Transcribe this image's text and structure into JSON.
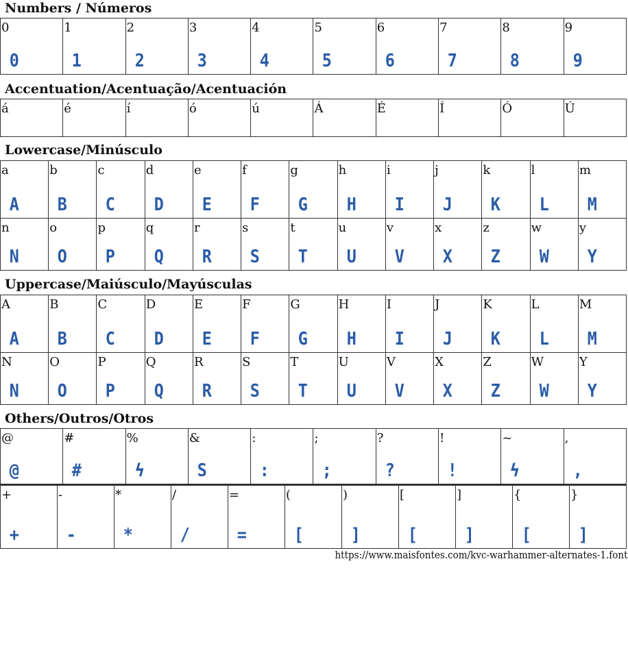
{
  "sections": {
    "numbers": "Numbers / Números",
    "accents": "Accentuation/Acentuação/Acentuación",
    "lowercase": "Lowercase/Minúsculo",
    "uppercase": "Uppercase/Maiúsculo/Mayúsculas",
    "others": "Others/Outros/Otros"
  },
  "glyph_color": "#2a5ca6",
  "rows": {
    "numbers": [
      [
        "0",
        "0"
      ],
      [
        "1",
        "1"
      ],
      [
        "2",
        "2"
      ],
      [
        "3",
        "3"
      ],
      [
        "4",
        "4"
      ],
      [
        "5",
        "5"
      ],
      [
        "6",
        "6"
      ],
      [
        "7",
        "7"
      ],
      [
        "8",
        "8"
      ],
      [
        "9",
        "9"
      ]
    ],
    "accents": [
      [
        "á",
        ""
      ],
      [
        "é",
        ""
      ],
      [
        "í",
        ""
      ],
      [
        "ó",
        ""
      ],
      [
        "ú",
        ""
      ],
      [
        "Á",
        ""
      ],
      [
        "É",
        ""
      ],
      [
        "Í",
        ""
      ],
      [
        "Ó",
        ""
      ],
      [
        "Ú",
        ""
      ]
    ],
    "lower1": [
      [
        "a",
        "A"
      ],
      [
        "b",
        "B"
      ],
      [
        "c",
        "C"
      ],
      [
        "d",
        "D"
      ],
      [
        "e",
        "E"
      ],
      [
        "f",
        "F"
      ],
      [
        "g",
        "G"
      ],
      [
        "h",
        "H"
      ],
      [
        "i",
        "I"
      ],
      [
        "j",
        "J"
      ],
      [
        "k",
        "K"
      ],
      [
        "l",
        "L"
      ],
      [
        "m",
        "M"
      ]
    ],
    "lower2": [
      [
        "n",
        "N"
      ],
      [
        "o",
        "O"
      ],
      [
        "p",
        "P"
      ],
      [
        "q",
        "Q"
      ],
      [
        "r",
        "R"
      ],
      [
        "s",
        "S"
      ],
      [
        "t",
        "T"
      ],
      [
        "u",
        "U"
      ],
      [
        "v",
        "V"
      ],
      [
        "x",
        "X"
      ],
      [
        "z",
        "Z"
      ],
      [
        "w",
        "W"
      ],
      [
        "y",
        "Y"
      ]
    ],
    "upper1": [
      [
        "A",
        "A"
      ],
      [
        "B",
        "B"
      ],
      [
        "C",
        "C"
      ],
      [
        "D",
        "D"
      ],
      [
        "E",
        "E"
      ],
      [
        "F",
        "F"
      ],
      [
        "G",
        "G"
      ],
      [
        "H",
        "H"
      ],
      [
        "I",
        "I"
      ],
      [
        "J",
        "J"
      ],
      [
        "K",
        "K"
      ],
      [
        "L",
        "L"
      ],
      [
        "M",
        "M"
      ]
    ],
    "upper2": [
      [
        "N",
        "N"
      ],
      [
        "O",
        "O"
      ],
      [
        "P",
        "P"
      ],
      [
        "Q",
        "Q"
      ],
      [
        "R",
        "R"
      ],
      [
        "S",
        "S"
      ],
      [
        "T",
        "T"
      ],
      [
        "U",
        "U"
      ],
      [
        "V",
        "V"
      ],
      [
        "X",
        "X"
      ],
      [
        "Z",
        "Z"
      ],
      [
        "W",
        "W"
      ],
      [
        "Y",
        "Y"
      ]
    ],
    "others1": [
      [
        "@",
        "@"
      ],
      [
        "#",
        "#"
      ],
      [
        "%",
        "ϟ"
      ],
      [
        "&",
        "S"
      ],
      [
        ":",
        ":"
      ],
      [
        ";",
        ";"
      ],
      [
        "?",
        "?"
      ],
      [
        "!",
        "!"
      ],
      [
        "~",
        "ϟ"
      ],
      [
        ",",
        ","
      ]
    ],
    "others2": [
      [
        "+",
        "+"
      ],
      [
        "-",
        "-"
      ],
      [
        "*",
        "*"
      ],
      [
        "/",
        "/"
      ],
      [
        "=",
        "="
      ],
      [
        "(",
        "["
      ],
      [
        ")",
        "]"
      ],
      [
        "[",
        "["
      ],
      [
        "]",
        "]"
      ],
      [
        "{",
        "["
      ],
      [
        "}",
        "]"
      ]
    ]
  },
  "footer_url": "https://www.maisfontes.com/kvc-warhammer-alternates-1.font"
}
